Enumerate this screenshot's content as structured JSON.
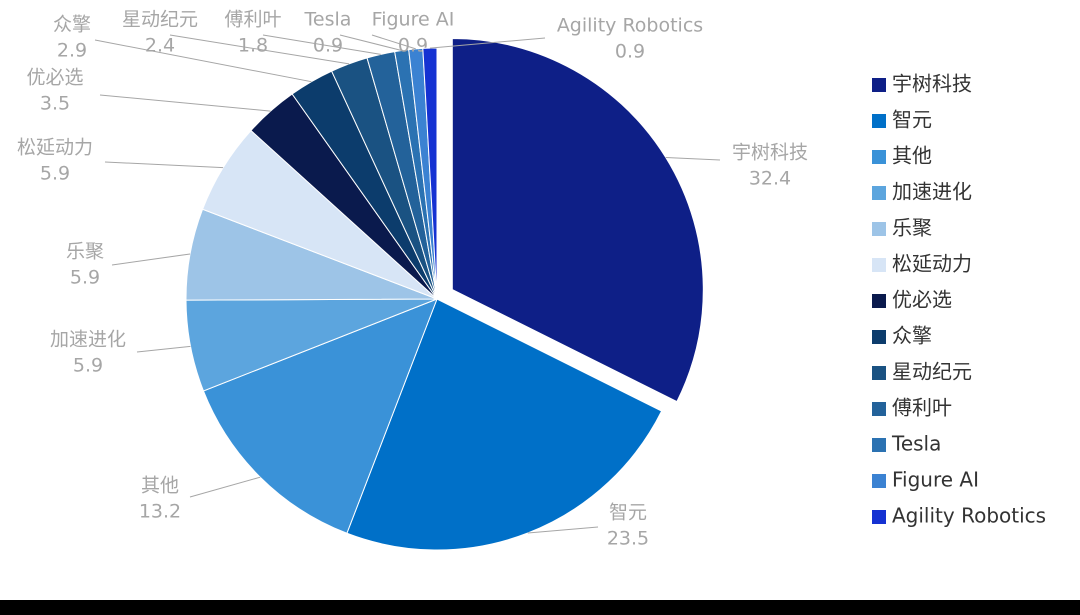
{
  "chart_data": {
    "type": "pie",
    "categories": [
      "宇树科技",
      "智元",
      "其他",
      "加速进化",
      "乐聚",
      "松延动力",
      "优必选",
      "众擎",
      "星动纪元",
      "傅利叶",
      "Tesla",
      "Figure AI",
      "Agility Robotics"
    ],
    "values": [
      32.4,
      23.5,
      13.2,
      5.9,
      5.9,
      5.9,
      3.5,
      2.9,
      2.4,
      1.8,
      0.9,
      0.9,
      0.9
    ],
    "colors": [
      "#0e1f87",
      "#0070c8",
      "#3a92d8",
      "#5ca5de",
      "#9dc4e7",
      "#d7e5f6",
      "#0a1a4d",
      "#0c3c6c",
      "#1a5282",
      "#23629a",
      "#2b72b2",
      "#3b82d2",
      "#1532d2"
    ],
    "legend": "right"
  }
}
